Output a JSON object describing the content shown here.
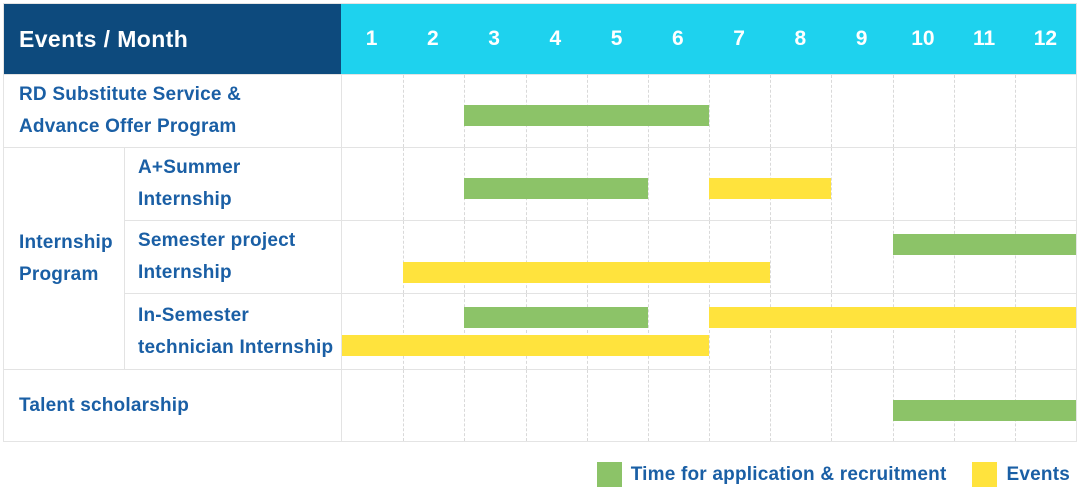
{
  "table": {
    "header": {
      "label": "Events / Month",
      "months": [
        "1",
        "2",
        "3",
        "4",
        "5",
        "6",
        "7",
        "8",
        "9",
        "10",
        "11",
        "12"
      ]
    },
    "row_labels": {
      "rd": [
        "RD Substitute Service &",
        "Advance Offer Program"
      ],
      "group_internship": [
        "Internship",
        "Program"
      ],
      "a_summer": [
        "A+Summer",
        "Internship"
      ],
      "semester_project": [
        "Semester project",
        "Internship"
      ],
      "in_semester": [
        "In-Semester",
        "technician Internship"
      ],
      "talent": [
        "Talent scholarship"
      ]
    }
  },
  "chart_data": {
    "type": "gantt",
    "title": "Events / Month",
    "x_axis": {
      "label": "Month",
      "ticks": [
        "1",
        "2",
        "3",
        "4",
        "5",
        "6",
        "7",
        "8",
        "9",
        "10",
        "11",
        "12"
      ],
      "range": [
        1,
        12
      ]
    },
    "series_legend": [
      {
        "id": "recruitment",
        "label": "Time for application & recruitment",
        "color": "#8cc368"
      },
      {
        "id": "event",
        "label": "Events",
        "color": "#ffe33d"
      }
    ],
    "rows": [
      {
        "label": "RD Substitute Service & Advance Offer Program",
        "group": null,
        "bars": [
          {
            "series": "recruitment",
            "start_month": 3,
            "end_month": 6,
            "lane": "mid"
          }
        ]
      },
      {
        "label": "A+Summer Internship",
        "group": "Internship Program",
        "bars": [
          {
            "series": "recruitment",
            "start_month": 3,
            "end_month": 5,
            "lane": "mid"
          },
          {
            "series": "event",
            "start_month": 7,
            "end_month": 8,
            "lane": "mid"
          }
        ]
      },
      {
        "label": "Semester project Internship",
        "group": "Internship Program",
        "bars": [
          {
            "series": "recruitment",
            "start_month": 10,
            "end_month": 12,
            "lane": "top"
          },
          {
            "series": "event",
            "start_month": 2,
            "end_month": 7,
            "lane": "bottom"
          }
        ]
      },
      {
        "label": "In-Semester technician Internship",
        "group": "Internship Program",
        "bars": [
          {
            "series": "recruitment",
            "start_month": 3,
            "end_month": 5,
            "lane": "top"
          },
          {
            "series": "event",
            "start_month": 7,
            "end_month": 12,
            "lane": "top"
          },
          {
            "series": "event",
            "start_month": 1,
            "end_month": 6,
            "lane": "bottom"
          }
        ]
      },
      {
        "label": "Talent scholarship",
        "group": null,
        "bars": [
          {
            "series": "recruitment",
            "start_month": 10,
            "end_month": 12,
            "lane": "mid"
          }
        ]
      }
    ]
  },
  "legend": {
    "items": [
      {
        "id": "recruitment",
        "label": "Time for application & recruitment",
        "color": "#8cc368"
      },
      {
        "id": "event",
        "label": "Events",
        "color": "#ffe33d"
      }
    ]
  },
  "colors": {
    "header_bg": "#0d4a7d",
    "months_bg": "#1ed2ee",
    "recruitment": "#8cc368",
    "event": "#ffe33d",
    "label_text": "#1a5fa5",
    "header_text": "#ffffff",
    "grid_line": "#e3e3e3"
  }
}
